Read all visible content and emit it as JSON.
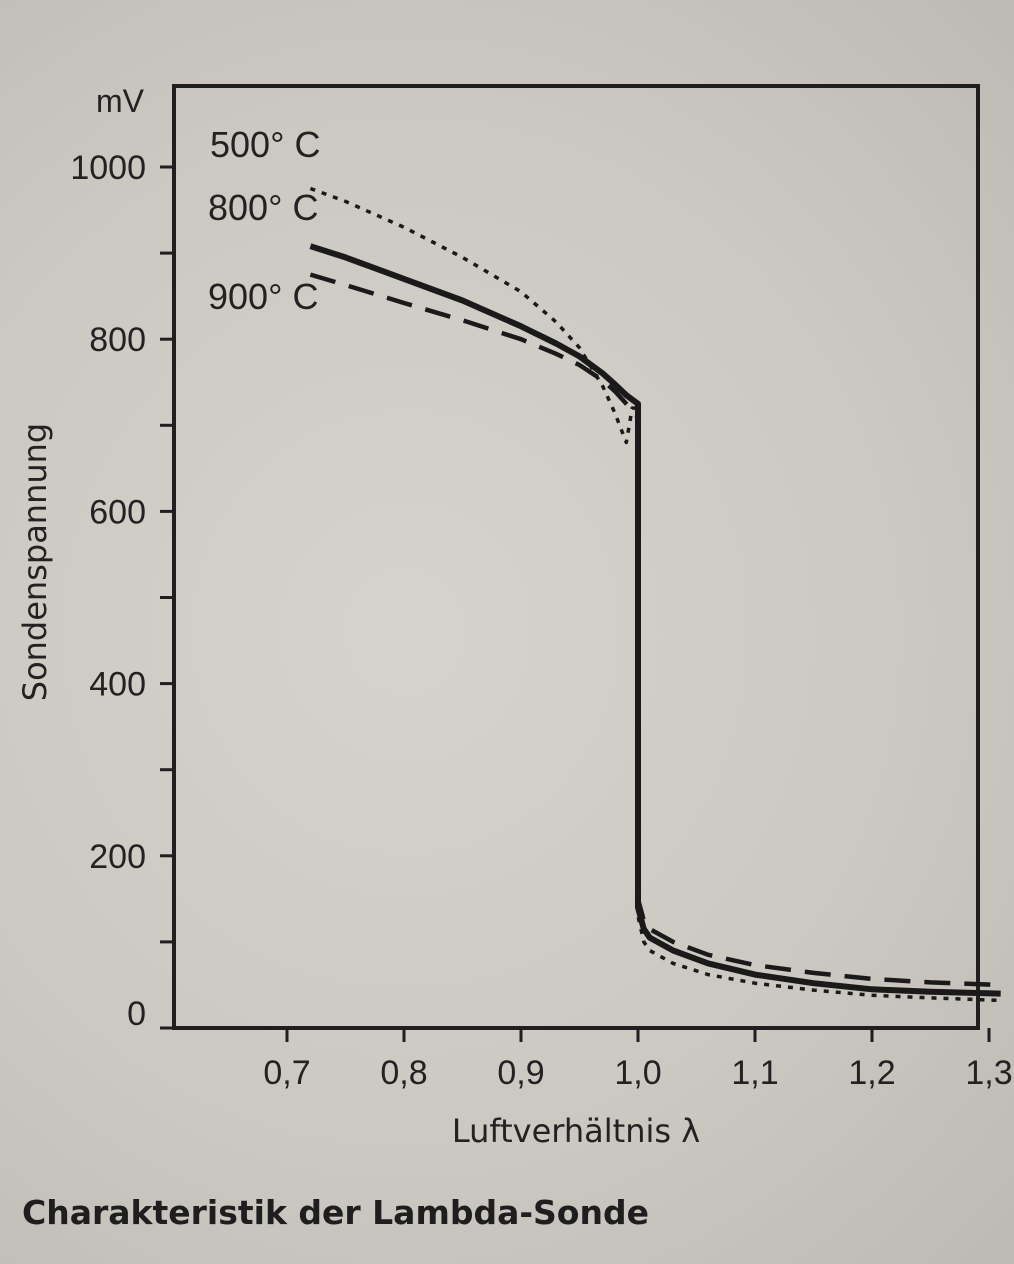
{
  "caption": "Charakteristik der Lambda-Sonde",
  "chart_data": {
    "type": "line",
    "title": "Charakteristik der Lambda-Sonde",
    "xlabel": "Luftverhältnis λ",
    "ylabel": "Sondenspannung",
    "y_unit": "mV",
    "xlim": [
      0.6,
      1.31
    ],
    "ylim": [
      0,
      1060
    ],
    "x_ticks": [
      0.7,
      0.8,
      0.9,
      1.0,
      1.1,
      1.2,
      1.3
    ],
    "x_tick_labels": [
      "0,7",
      "0,8",
      "0,9",
      "1,0",
      "1,1",
      "1,2",
      "1,3"
    ],
    "y_major_ticks": [
      0,
      200,
      400,
      600,
      800,
      1000
    ],
    "y_tick_labels": [
      "0",
      "200",
      "400",
      "600",
      "800",
      "1000"
    ],
    "y_minor_ticks": [
      100,
      300,
      500,
      700,
      900
    ],
    "grid": false,
    "series": [
      {
        "name": "500° C",
        "style": "dotted",
        "x": [
          0.72,
          0.75,
          0.8,
          0.85,
          0.9,
          0.93,
          0.95,
          0.97,
          0.98,
          0.99,
          0.995,
          1.0,
          1.0,
          1.005,
          1.01,
          1.03,
          1.06,
          1.1,
          1.15,
          1.2,
          1.25,
          1.31
        ],
        "y": [
          975,
          960,
          930,
          895,
          855,
          820,
          790,
          745,
          715,
          680,
          720,
          720,
          130,
          100,
          90,
          75,
          62,
          52,
          44,
          38,
          35,
          32
        ]
      },
      {
        "name": "800° C",
        "style": "solid",
        "x": [
          0.72,
          0.75,
          0.8,
          0.85,
          0.9,
          0.93,
          0.95,
          0.97,
          0.98,
          0.99,
          1.0,
          1.0,
          1.005,
          1.01,
          1.03,
          1.06,
          1.1,
          1.15,
          1.2,
          1.25,
          1.31
        ],
        "y": [
          908,
          895,
          870,
          845,
          815,
          795,
          780,
          760,
          748,
          735,
          725,
          140,
          115,
          105,
          90,
          75,
          62,
          52,
          45,
          42,
          40
        ]
      },
      {
        "name": "900° C",
        "style": "dashed",
        "x": [
          0.72,
          0.75,
          0.8,
          0.85,
          0.9,
          0.93,
          0.95,
          0.97,
          0.98,
          0.99,
          1.0,
          1.0,
          1.005,
          1.01,
          1.03,
          1.06,
          1.1,
          1.15,
          1.2,
          1.25,
          1.31
        ],
        "y": [
          875,
          863,
          842,
          822,
          800,
          783,
          770,
          752,
          740,
          725,
          710,
          150,
          125,
          115,
          100,
          85,
          73,
          64,
          57,
          53,
          50
        ]
      }
    ]
  }
}
